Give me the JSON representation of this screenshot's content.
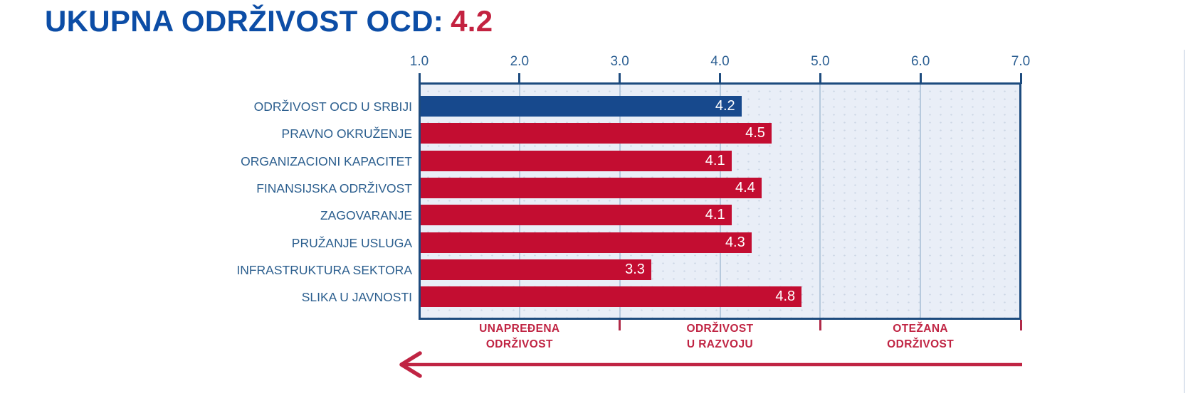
{
  "title": {
    "label": "UKUPNA ODRŽIVOST OCD:",
    "score": "4.2"
  },
  "chart_data": {
    "type": "bar",
    "orientation": "horizontal",
    "title": "UKUPNA ODRŽIVOST OCD: 4.2",
    "xlim": [
      1.0,
      7.0
    ],
    "x_tick_labels": [
      "1.0",
      "2.0",
      "3.0",
      "4.0",
      "5.0",
      "6.0",
      "7.0"
    ],
    "grid": "vertical gridlines at each whole value, dotted plot background",
    "legend": "none",
    "categories": [
      "ODRŽIVOST OCD U SRBIJI",
      "PRAVNO OKRUŽENJE",
      "ORGANIZACIONI KAPACITET",
      "FINANSIJSKA ODRŽIVOST",
      "ZAGOVARANJE",
      "PRUŽANJE USLUGA",
      "INFRASTRUKTURA SEKTORA",
      "SLIKA U JAVNOSTI"
    ],
    "values": [
      4.2,
      4.5,
      4.1,
      4.4,
      4.1,
      4.3,
      3.3,
      4.8
    ],
    "value_labels": [
      "4.2",
      "4.5",
      "4.1",
      "4.4",
      "4.1",
      "4.3",
      "3.3",
      "4.8"
    ],
    "highlight_index": 0,
    "zones": [
      {
        "line1": "UNAPREĐENA",
        "line2": "ODRŽIVOST",
        "from": 1.0,
        "to": 3.0
      },
      {
        "line1": "ODRŽIVOST",
        "line2": "U RAZVOJU",
        "from": 3.0,
        "to": 5.0
      },
      {
        "line1": "OTEŽANA",
        "line2": "ODRŽIVOST",
        "from": 5.0,
        "to": 7.0
      }
    ],
    "zone_boundary_ticks": [
      3.0,
      5.0,
      7.0
    ],
    "arrow": {
      "direction": "left"
    },
    "colors": {
      "highlight_bar": "#17498d",
      "bar": "#c30d31",
      "plot_bg": "#e9eef7",
      "plot_border": "#1d4b7e",
      "gridline": "#b6c9dd",
      "axis_text": "#2d6093",
      "category_text": "#2b5e8e",
      "value_text": "#ffffff",
      "zone_text": "#c02443",
      "zone_tick": "#b02a48",
      "title_text": "#0c4da6",
      "title_score": "#c32240"
    }
  }
}
